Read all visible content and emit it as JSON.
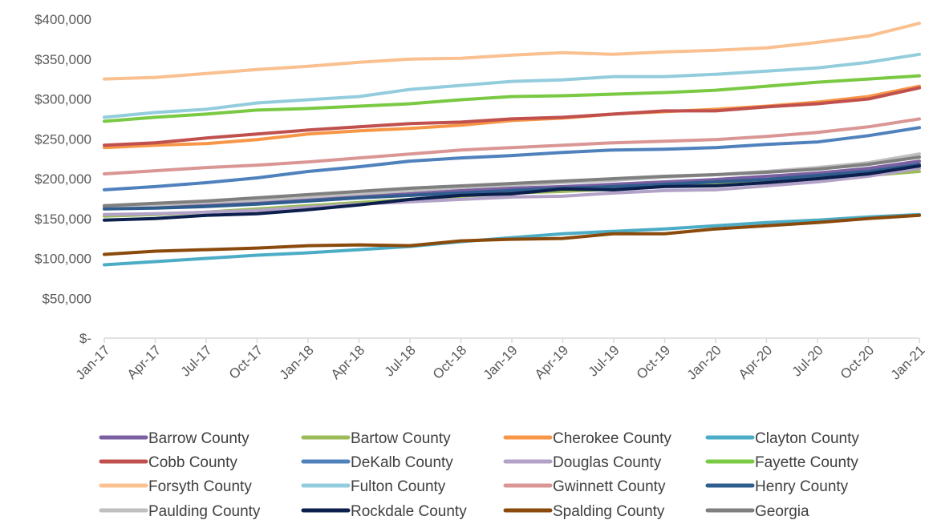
{
  "chart_data": {
    "type": "line",
    "title": "",
    "xlabel": "",
    "ylabel": "",
    "y_format": "currency",
    "ylim": [
      0,
      400000
    ],
    "y_ticks": [
      0,
      50000,
      100000,
      150000,
      200000,
      250000,
      300000,
      350000,
      400000
    ],
    "y_tick_labels": [
      "$-",
      "$50,000",
      "$100,000",
      "$150,000",
      "$200,000",
      "$250,000",
      "$300,000",
      "$350,000",
      "$400,000"
    ],
    "grid": false,
    "legend_position": "bottom",
    "x_labels": [
      "Jan-17",
      "Apr-17",
      "Jul-17",
      "Oct-17",
      "Jan-18",
      "Apr-18",
      "Jul-18",
      "Oct-18",
      "Jan-19",
      "Apr-19",
      "Jul-19",
      "Oct-19",
      "Jan-20",
      "Apr-20",
      "Jul-20",
      "Oct-20",
      "Jan-21"
    ],
    "series": [
      {
        "name": "Barrow County",
        "color": "#7a5fa1",
        "values": [
          165000,
          166000,
          168000,
          171000,
          174000,
          178000,
          181000,
          185000,
          188000,
          190000,
          193000,
          196000,
          199000,
          203000,
          207000,
          213000,
          222000
        ]
      },
      {
        "name": "Bartow County",
        "color": "#9bbb59",
        "values": [
          153000,
          155000,
          158000,
          162000,
          166000,
          170000,
          174000,
          178000,
          182000,
          184000,
          187000,
          191000,
          194000,
          197000,
          200000,
          204000,
          209000
        ]
      },
      {
        "name": "Cherokee County",
        "color": "#f79646",
        "values": [
          239000,
          242000,
          244000,
          249000,
          256000,
          260000,
          263000,
          267000,
          273000,
          276000,
          281000,
          284000,
          287000,
          291000,
          296000,
          303000,
          316000
        ]
      },
      {
        "name": "Clayton County",
        "color": "#4bacc6",
        "values": [
          92000,
          96000,
          100000,
          104000,
          107000,
          111000,
          115000,
          121000,
          126000,
          131000,
          134000,
          137000,
          141000,
          145000,
          148000,
          152000,
          155000
        ]
      },
      {
        "name": "Cobb County",
        "color": "#c0504d",
        "values": [
          242000,
          245000,
          251000,
          256000,
          261000,
          265000,
          269000,
          271000,
          275000,
          277000,
          281000,
          285000,
          285000,
          290000,
          294000,
          300000,
          314000
        ]
      },
      {
        "name": "DeKalb County",
        "color": "#4f81bd",
        "values": [
          186000,
          190000,
          195000,
          201000,
          209000,
          215000,
          222000,
          226000,
          229000,
          233000,
          236000,
          237000,
          239000,
          243000,
          246000,
          254000,
          264000
        ]
      },
      {
        "name": "Douglas County",
        "color": "#b3a2c7",
        "values": [
          155000,
          156000,
          158000,
          160000,
          164000,
          168000,
          171000,
          174000,
          177000,
          178000,
          182000,
          185000,
          186000,
          191000,
          196000,
          203000,
          213000
        ]
      },
      {
        "name": "Fayette County",
        "color": "#7ac943",
        "values": [
          272000,
          277000,
          281000,
          286000,
          288000,
          291000,
          294000,
          299000,
          303000,
          304000,
          306000,
          308000,
          311000,
          316000,
          321000,
          325000,
          329000
        ]
      },
      {
        "name": "Forsyth County",
        "color": "#fac090",
        "values": [
          325000,
          327000,
          332000,
          337000,
          341000,
          346000,
          350000,
          351000,
          355000,
          358000,
          356000,
          359000,
          361000,
          364000,
          371000,
          379000,
          395000
        ]
      },
      {
        "name": "Fulton County",
        "color": "#93cddd",
        "values": [
          277000,
          283000,
          287000,
          295000,
          299000,
          303000,
          312000,
          317000,
          322000,
          324000,
          328000,
          328000,
          331000,
          335000,
          339000,
          346000,
          356000
        ]
      },
      {
        "name": "Gwinnett County",
        "color": "#d99694",
        "values": [
          206000,
          210000,
          214000,
          217000,
          221000,
          226000,
          231000,
          236000,
          239000,
          242000,
          245000,
          247000,
          249000,
          253000,
          258000,
          265000,
          275000
        ]
      },
      {
        "name": "Henry County",
        "color": "#2e5d8e",
        "values": [
          162000,
          163000,
          165000,
          168000,
          172000,
          176000,
          179000,
          182000,
          185000,
          188000,
          190000,
          193000,
          196000,
          199000,
          204000,
          209000,
          218000
        ]
      },
      {
        "name": "Paulding County",
        "color": "#bfbfbf",
        "values": [
          166000,
          167000,
          170000,
          173000,
          177000,
          181000,
          185000,
          189000,
          192000,
          195000,
          198000,
          202000,
          205000,
          209000,
          214000,
          220000,
          231000
        ]
      },
      {
        "name": "Rockdale County",
        "color": "#0c1f4d",
        "values": [
          148000,
          150000,
          154000,
          156000,
          161000,
          167000,
          174000,
          179000,
          181000,
          187000,
          186000,
          190000,
          191000,
          195000,
          200000,
          206000,
          216000
        ]
      },
      {
        "name": "Spalding County",
        "color": "#8a4a0b",
        "values": [
          105000,
          109000,
          111000,
          113000,
          116000,
          117000,
          116000,
          122000,
          124000,
          125000,
          131000,
          131000,
          137000,
          141000,
          145000,
          150000,
          154000
        ]
      },
      {
        "name": "Georgia",
        "color": "#7f7f7f",
        "values": [
          166000,
          169000,
          172000,
          176000,
          180000,
          184000,
          188000,
          191000,
          194000,
          197000,
          200000,
          203000,
          205000,
          208000,
          212000,
          218000,
          227000
        ]
      }
    ]
  }
}
